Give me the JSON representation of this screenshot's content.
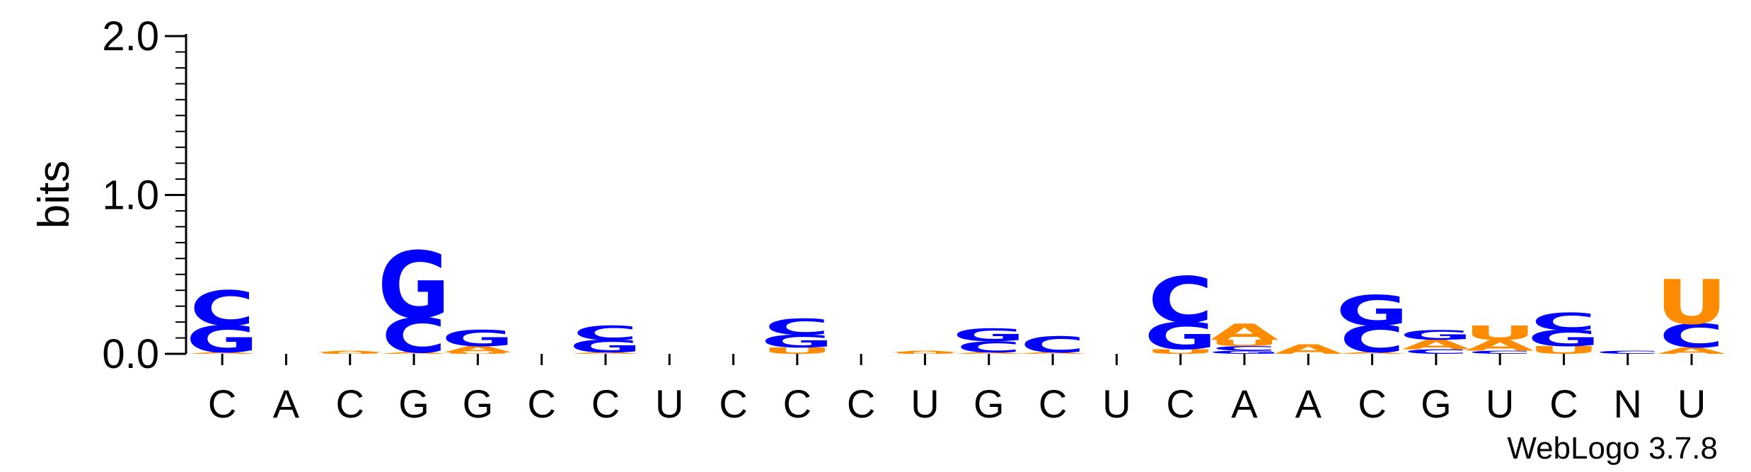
{
  "chart_data": {
    "type": "sequence-logo",
    "ylabel": "bits",
    "ylim": [
      0,
      2.0
    ],
    "yticks": [
      "0.0",
      "1.0",
      "2.0"
    ],
    "footer": "WebLogo 3.7.8",
    "colors": {
      "A": "#ff8c00",
      "U": "#ff8c00",
      "C": "#0000ff",
      "G": "#0000ff",
      "N": "#0000ff"
    },
    "positions": [
      {
        "label": "C",
        "stack": [
          {
            "base": "A",
            "bits": 0.01
          },
          {
            "base": "G",
            "bits": 0.17
          },
          {
            "base": "C",
            "bits": 0.22
          }
        ]
      },
      {
        "label": "A",
        "stack": []
      },
      {
        "label": "C",
        "stack": [
          {
            "base": "U",
            "bits": 0.01
          },
          {
            "base": "A",
            "bits": 0.01
          }
        ]
      },
      {
        "label": "G",
        "stack": [
          {
            "base": "A",
            "bits": 0.01
          },
          {
            "base": "C",
            "bits": 0.22
          },
          {
            "base": "G",
            "bits": 0.42
          }
        ]
      },
      {
        "label": "G",
        "stack": [
          {
            "base": "U",
            "bits": 0.01
          },
          {
            "base": "A",
            "bits": 0.04
          },
          {
            "base": "G",
            "bits": 0.1
          }
        ]
      },
      {
        "label": "C",
        "stack": []
      },
      {
        "label": "C",
        "stack": [
          {
            "base": "A",
            "bits": 0.01
          },
          {
            "base": "G",
            "bits": 0.08
          },
          {
            "base": "C",
            "bits": 0.09
          }
        ]
      },
      {
        "label": "U",
        "stack": []
      },
      {
        "label": "C",
        "stack": []
      },
      {
        "label": "C",
        "stack": [
          {
            "base": "U",
            "bits": 0.04
          },
          {
            "base": "G",
            "bits": 0.08
          },
          {
            "base": "C",
            "bits": 0.1
          }
        ]
      },
      {
        "label": "C",
        "stack": []
      },
      {
        "label": "U",
        "stack": [
          {
            "base": "U",
            "bits": 0.01
          },
          {
            "base": "A",
            "bits": 0.01
          }
        ]
      },
      {
        "label": "G",
        "stack": [
          {
            "base": "A",
            "bits": 0.01
          },
          {
            "base": "C",
            "bits": 0.07
          },
          {
            "base": "G",
            "bits": 0.08
          }
        ]
      },
      {
        "label": "C",
        "stack": [
          {
            "base": "A",
            "bits": 0.01
          },
          {
            "base": "C",
            "bits": 0.1
          }
        ]
      },
      {
        "label": "U",
        "stack": []
      },
      {
        "label": "C",
        "stack": [
          {
            "base": "U",
            "bits": 0.03
          },
          {
            "base": "G",
            "bits": 0.17
          },
          {
            "base": "C",
            "bits": 0.29
          }
        ]
      },
      {
        "label": "A",
        "stack": [
          {
            "base": "G",
            "bits": 0.02
          },
          {
            "base": "C",
            "bits": 0.03
          },
          {
            "base": "U",
            "bits": 0.04
          },
          {
            "base": "A",
            "bits": 0.1
          }
        ]
      },
      {
        "label": "A",
        "stack": [
          {
            "base": "A",
            "bits": 0.06
          }
        ]
      },
      {
        "label": "C",
        "stack": [
          {
            "base": "A",
            "bits": 0.01
          },
          {
            "base": "C",
            "bits": 0.17
          },
          {
            "base": "G",
            "bits": 0.19
          }
        ]
      },
      {
        "label": "G",
        "stack": [
          {
            "base": "C",
            "bits": 0.03
          },
          {
            "base": "A",
            "bits": 0.06
          },
          {
            "base": "G",
            "bits": 0.06
          }
        ]
      },
      {
        "label": "U",
        "stack": [
          {
            "base": "C",
            "bits": 0.02
          },
          {
            "base": "A",
            "bits": 0.07
          },
          {
            "base": "U",
            "bits": 0.09
          }
        ]
      },
      {
        "label": "C",
        "stack": [
          {
            "base": "U",
            "bits": 0.05
          },
          {
            "base": "G",
            "bits": 0.1
          },
          {
            "base": "C",
            "bits": 0.11
          }
        ]
      },
      {
        "label": "N",
        "stack": [
          {
            "base": "C",
            "bits": 0.02
          }
        ]
      },
      {
        "label": "U",
        "stack": [
          {
            "base": "A",
            "bits": 0.04
          },
          {
            "base": "C",
            "bits": 0.15
          },
          {
            "base": "U",
            "bits": 0.28
          }
        ]
      }
    ]
  }
}
